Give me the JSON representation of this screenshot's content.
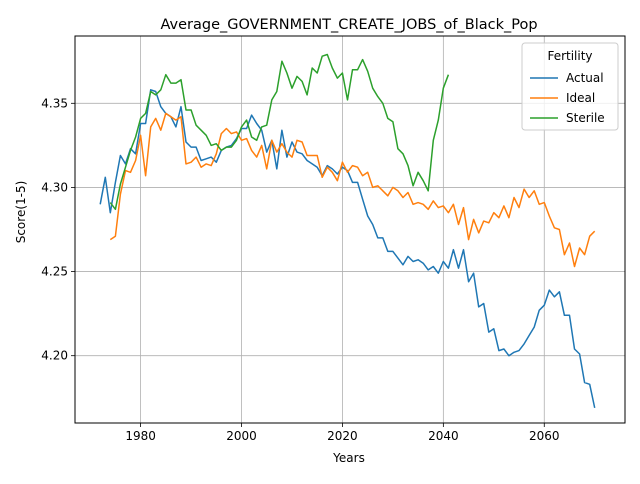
{
  "chart_data": {
    "type": "line",
    "title": "Average_GOVERNMENT_CREATE_JOBS_of_Black_Pop",
    "xlabel": "Years",
    "ylabel": "Score(1-5)",
    "xlim": [
      1967,
      2076
    ],
    "ylim": [
      4.16,
      4.39
    ],
    "xticks": [
      1980,
      2000,
      2020,
      2040,
      2060
    ],
    "yticks": [
      4.2,
      4.25,
      4.3,
      4.35
    ],
    "grid": true,
    "legend": {
      "title": "Fertility",
      "placement": "top-right"
    },
    "series": [
      {
        "name": "Actual",
        "color": "#1f77b4",
        "x": [
          1972,
          1973,
          1974,
          1975,
          1976,
          1977,
          1978,
          1979,
          1980,
          1981,
          1982,
          1983,
          1984,
          1985,
          1986,
          1987,
          1988,
          1989,
          1990,
          1991,
          1992,
          1993,
          1994,
          1995,
          1996,
          1997,
          1998,
          1999,
          2000,
          2001,
          2002,
          2003,
          2004,
          2005,
          2006,
          2007,
          2008,
          2009,
          2010,
          2011,
          2012,
          2013,
          2014,
          2015,
          2016,
          2017,
          2018,
          2019,
          2020,
          2021,
          2022,
          2023,
          2024,
          2025,
          2026,
          2027,
          2028,
          2029,
          2030,
          2031,
          2032,
          2033,
          2034,
          2035,
          2036,
          2037,
          2038,
          2039,
          2040,
          2041,
          2042,
          2043,
          2044,
          2045,
          2046,
          2047,
          2048,
          2049,
          2050,
          2051,
          2052,
          2053,
          2054,
          2055,
          2056,
          2057,
          2058,
          2059,
          2060,
          2061,
          2062,
          2063,
          2064,
          2065,
          2066,
          2067,
          2068,
          2069,
          2070
        ],
        "values": [
          4.29,
          4.306,
          4.285,
          4.303,
          4.319,
          4.314,
          4.323,
          4.32,
          4.338,
          4.338,
          4.358,
          4.357,
          4.348,
          4.344,
          4.342,
          4.336,
          4.348,
          4.327,
          4.324,
          4.324,
          4.316,
          4.317,
          4.318,
          4.315,
          4.322,
          4.324,
          4.325,
          4.329,
          4.335,
          4.335,
          4.343,
          4.338,
          4.334,
          4.321,
          4.328,
          4.311,
          4.334,
          4.318,
          4.327,
          4.321,
          4.32,
          4.316,
          4.314,
          4.312,
          4.307,
          4.313,
          4.311,
          4.308,
          4.312,
          4.31,
          4.303,
          4.303,
          4.293,
          4.283,
          4.278,
          4.27,
          4.27,
          4.262,
          4.262,
          4.258,
          4.254,
          4.259,
          4.256,
          4.257,
          4.255,
          4.251,
          4.253,
          4.249,
          4.256,
          4.252,
          4.263,
          4.252,
          4.263,
          4.244,
          4.249,
          4.229,
          4.231,
          4.214,
          4.216,
          4.203,
          4.204,
          4.2,
          4.202,
          4.203,
          4.207,
          4.212,
          4.217,
          4.227,
          4.23,
          4.239,
          4.235,
          4.238,
          4.224,
          4.224,
          4.204,
          4.201,
          4.184,
          4.183,
          4.169
        ]
      },
      {
        "name": "Ideal",
        "color": "#ff7f0e",
        "x": [
          1974,
          1975,
          1976,
          1977,
          1978,
          1979,
          1980,
          1981,
          1982,
          1983,
          1984,
          1985,
          1986,
          1987,
          1988,
          1989,
          1990,
          1991,
          1992,
          1993,
          1994,
          1995,
          1996,
          1997,
          1998,
          1999,
          2000,
          2001,
          2002,
          2003,
          2004,
          2005,
          2006,
          2007,
          2008,
          2009,
          2010,
          2011,
          2012,
          2013,
          2014,
          2015,
          2016,
          2017,
          2018,
          2019,
          2020,
          2021,
          2022,
          2023,
          2024,
          2025,
          2026,
          2027,
          2028,
          2029,
          2030,
          2031,
          2032,
          2033,
          2034,
          2035,
          2036,
          2037,
          2038,
          2039,
          2040,
          2041,
          2042,
          2043,
          2044,
          2045,
          2046,
          2047,
          2048,
          2049,
          2050,
          2051,
          2052,
          2053,
          2054,
          2055,
          2056,
          2057,
          2058,
          2059,
          2060,
          2061,
          2062,
          2063,
          2064,
          2065,
          2066,
          2067,
          2068,
          2069,
          2070
        ],
        "values": [
          4.269,
          4.271,
          4.296,
          4.31,
          4.309,
          4.316,
          4.331,
          4.307,
          4.336,
          4.341,
          4.334,
          4.344,
          4.342,
          4.34,
          4.342,
          4.314,
          4.315,
          4.318,
          4.312,
          4.314,
          4.313,
          4.32,
          4.332,
          4.335,
          4.332,
          4.333,
          4.328,
          4.329,
          4.322,
          4.318,
          4.325,
          4.311,
          4.328,
          4.321,
          4.326,
          4.321,
          4.318,
          4.328,
          4.327,
          4.319,
          4.319,
          4.319,
          4.306,
          4.312,
          4.309,
          4.304,
          4.315,
          4.309,
          4.313,
          4.312,
          4.307,
          4.309,
          4.3,
          4.301,
          4.298,
          4.295,
          4.3,
          4.298,
          4.294,
          4.297,
          4.29,
          4.291,
          4.29,
          4.287,
          4.292,
          4.288,
          4.289,
          4.285,
          4.29,
          4.278,
          4.288,
          4.269,
          4.281,
          4.273,
          4.28,
          4.279,
          4.285,
          4.282,
          4.289,
          4.282,
          4.294,
          4.288,
          4.299,
          4.294,
          4.298,
          4.29,
          4.291,
          4.283,
          4.276,
          4.275,
          4.26,
          4.267,
          4.253,
          4.264,
          4.26,
          4.271,
          4.274
        ]
      },
      {
        "name": "Sterile",
        "color": "#2ca02c",
        "x": [
          1974,
          1975,
          1976,
          1977,
          1978,
          1979,
          1980,
          1981,
          1982,
          1983,
          1984,
          1985,
          1986,
          1987,
          1988,
          1989,
          1990,
          1991,
          1992,
          1993,
          1994,
          1995,
          1996,
          1997,
          1998,
          1999,
          2000,
          2001,
          2002,
          2003,
          2004,
          2005,
          2006,
          2007,
          2008,
          2009,
          2010,
          2011,
          2012,
          2013,
          2014,
          2015,
          2016,
          2017,
          2018,
          2019,
          2020,
          2021,
          2022,
          2023,
          2024,
          2025,
          2026,
          2027,
          2028,
          2029,
          2030,
          2031,
          2032,
          2033,
          2034,
          2035,
          2036,
          2037,
          2038,
          2039,
          2040,
          2041
        ],
        "values": [
          4.291,
          4.287,
          4.302,
          4.312,
          4.322,
          4.33,
          4.341,
          4.344,
          4.357,
          4.355,
          4.358,
          4.367,
          4.362,
          4.362,
          4.364,
          4.346,
          4.346,
          4.337,
          4.334,
          4.331,
          4.325,
          4.326,
          4.322,
          4.324,
          4.324,
          4.328,
          4.336,
          4.34,
          4.33,
          4.328,
          4.336,
          4.337,
          4.352,
          4.357,
          4.375,
          4.368,
          4.359,
          4.366,
          4.363,
          4.355,
          4.371,
          4.368,
          4.378,
          4.379,
          4.371,
          4.365,
          4.368,
          4.352,
          4.37,
          4.37,
          4.376,
          4.369,
          4.359,
          4.354,
          4.35,
          4.341,
          4.339,
          4.323,
          4.32,
          4.313,
          4.301,
          4.309,
          4.304,
          4.298,
          4.328,
          4.34,
          4.359,
          4.367
        ]
      }
    ]
  }
}
